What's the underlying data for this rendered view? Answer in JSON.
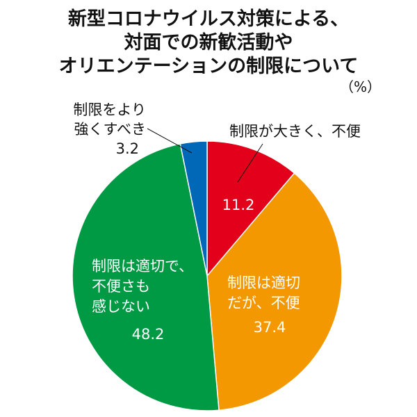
{
  "chart_data": {
    "type": "pie",
    "title": [
      "新型コロナウイルス対策による、",
      "対面での新歓活動や",
      "オリエンテーションの制限について"
    ],
    "unit": "（%）",
    "slices": [
      {
        "label": [
          "制限が大きく、不便"
        ],
        "value": "11.2",
        "color": "#e2001a"
      },
      {
        "label": [
          "制限は適切",
          "だが、不便"
        ],
        "value": "37.4",
        "color": "#f39800"
      },
      {
        "label": [
          "制限は適切で、",
          "不便さも",
          "感じない"
        ],
        "value": "48.2",
        "color": "#009944"
      },
      {
        "label": [
          "制限をより",
          "強くすべき"
        ],
        "value": "3.2",
        "color": "#0068b7"
      }
    ]
  }
}
